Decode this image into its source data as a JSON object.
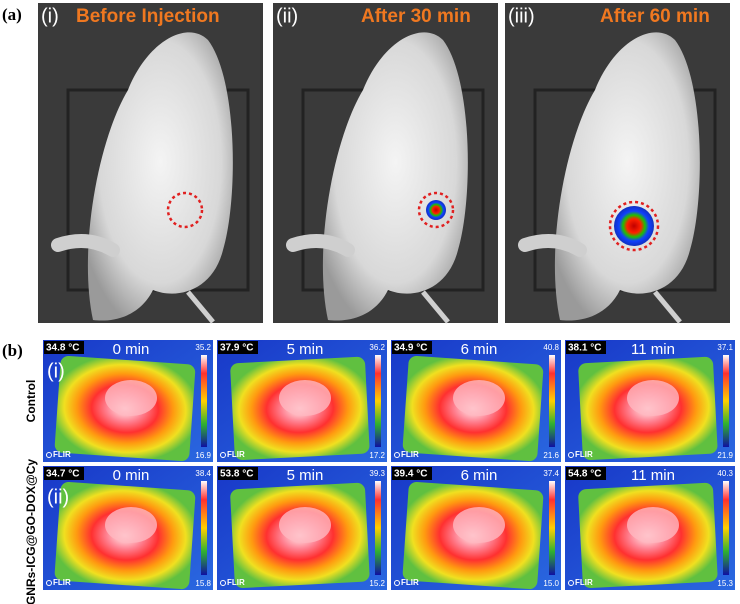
{
  "figure": {
    "part_a": {
      "label": "(a)",
      "panels": [
        {
          "index": "(i)",
          "title": "Before Injection"
        },
        {
          "index": "(ii)",
          "title": "After 30 min"
        },
        {
          "index": "(iii)",
          "title": "After 60 min"
        }
      ]
    },
    "part_b": {
      "label": "(b)",
      "rows": [
        {
          "label": "Control",
          "index": "(i)",
          "panels": [
            {
              "temp": "34.8 °C",
              "time": "0 min",
              "scale_max": "35.2",
              "scale_min": "16.9",
              "brand": "FLIR"
            },
            {
              "temp": "37.9 °C",
              "time": "5 min",
              "scale_max": "36.2",
              "scale_min": "17.2",
              "brand": "FLIR"
            },
            {
              "temp": "34.9 °C",
              "time": "6 min",
              "scale_max": "40.8",
              "scale_min": "21.6",
              "brand": "FLIR"
            },
            {
              "temp": "38.1 °C",
              "time": "11 min",
              "scale_max": "37.1",
              "scale_min": "21.9",
              "brand": "FLIR"
            }
          ]
        },
        {
          "label": "GNRs-ICG@GO-DOX@Cy",
          "index": "(ii)",
          "panels": [
            {
              "temp": "34.7 °C",
              "time": "0 min",
              "scale_max": "38.4",
              "scale_min": "15.8",
              "brand": "FLIR"
            },
            {
              "temp": "53.8 °C",
              "time": "5 min",
              "scale_max": "39.3",
              "scale_min": "15.2",
              "brand": "FLIR"
            },
            {
              "temp": "39.4 °C",
              "time": "6 min",
              "scale_max": "37.4",
              "scale_min": "15.0",
              "brand": "FLIR"
            },
            {
              "temp": "54.8 °C",
              "time": "11 min",
              "scale_max": "40.3",
              "scale_min": "15.3",
              "brand": "FLIR"
            }
          ]
        }
      ]
    }
  }
}
